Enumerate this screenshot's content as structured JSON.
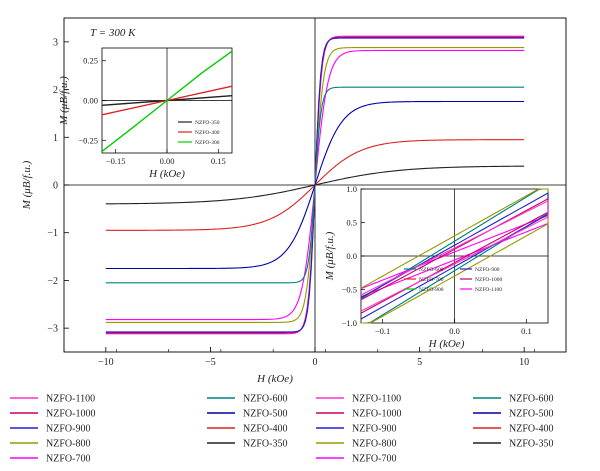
{
  "colors": {
    "NZFO-1100": "#ff33cc",
    "NZFO-1000": "#cc0066",
    "NZFO-900": "#2222cc",
    "NZFO-800": "#999900",
    "NZFO-700": "#ff00ff",
    "NZFO-600": "#008080",
    "NZFO-500": "#0000aa",
    "NZFO-400": "#dd2222",
    "NZFO-350": "#222222",
    "NZFO-300": "#00cc00"
  },
  "chart_data": [
    {
      "id": "main",
      "type": "line",
      "annotation": "T = 300 K",
      "xlabel": "H (kOe)",
      "ylabel": "M (μB/f.u.)",
      "xlim": [
        -12,
        12
      ],
      "ylim": [
        -3.5,
        3.5
      ],
      "xticks": [
        -10,
        -5,
        0,
        5,
        10
      ],
      "xtick_labels": [
        "−10",
        "−5",
        "0",
        "5",
        "10"
      ],
      "yticks": [
        -3,
        -2,
        -1,
        0,
        1,
        2,
        3
      ],
      "ytick_labels": [
        "−3",
        "−2",
        "−1",
        "0",
        "1",
        "2",
        "3"
      ],
      "grid": false,
      "series": [
        {
          "name": "NZFO-1100",
          "ms": 3.12,
          "hk": 0.32
        },
        {
          "name": "NZFO-1000",
          "ms": 3.1,
          "hk": 0.3
        },
        {
          "name": "NZFO-900",
          "ms": 3.08,
          "hk": 0.28
        },
        {
          "name": "NZFO-800",
          "ms": 2.88,
          "hk": 0.4
        },
        {
          "name": "NZFO-700",
          "ms": 2.82,
          "hk": 0.62
        },
        {
          "name": "NZFO-600",
          "ms": 2.05,
          "hk": 0.3
        },
        {
          "name": "NZFO-500",
          "ms": 1.75,
          "hk": 1.3
        },
        {
          "name": "NZFO-400",
          "ms": 0.95,
          "hk": 2.2
        },
        {
          "name": "NZFO-350",
          "ms": 0.4,
          "hk": 4.0
        }
      ]
    },
    {
      "id": "inset-left",
      "type": "line",
      "xlabel": "H (kOe)",
      "ylabel": "M (μB/f.u.)",
      "xlim": [
        -0.19,
        0.19
      ],
      "ylim": [
        -0.33,
        0.33
      ],
      "xticks": [
        -0.15,
        0,
        0.15
      ],
      "xtick_labels": [
        "−0.15",
        "0.00",
        "0.15"
      ],
      "yticks": [
        -0.25,
        0,
        0.25
      ],
      "ytick_labels": [
        "−0.25",
        "0.00",
        "0.25"
      ],
      "series": [
        {
          "name": "NZFO-350",
          "x": [
            -0.19,
            0.0,
            0.19
          ],
          "y": [
            -0.03,
            0.0,
            0.03
          ]
        },
        {
          "name": "NZFO-400",
          "x": [
            -0.19,
            0.0,
            0.19
          ],
          "y": [
            -0.09,
            0.0,
            0.09
          ]
        },
        {
          "name": "NZFO-300",
          "x": [
            -0.19,
            -0.1,
            0.0,
            0.1,
            0.19
          ],
          "y": [
            -0.32,
            -0.17,
            0.0,
            0.17,
            0.31
          ]
        }
      ]
    },
    {
      "id": "inset-right",
      "type": "line",
      "xlabel": "H (kOe)",
      "ylabel": "M (μB/f.u.)",
      "xlim": [
        -0.13,
        0.13
      ],
      "ylim": [
        -1.0,
        1.0
      ],
      "xticks": [
        -0.1,
        0,
        0.1
      ],
      "xtick_labels": [
        "−0.1",
        "0.0",
        "0.1"
      ],
      "yticks": [
        -1.0,
        -0.5,
        0.0,
        0.5,
        1.0
      ],
      "ytick_labels": [
        "−1.0",
        "−0.5",
        "0.0",
        "0.5",
        "1.0"
      ],
      "series": [
        {
          "name": "NZFO-600",
          "slope": 6.6,
          "mr": 0.22
        },
        {
          "name": "NZFO-700",
          "slope": 4.2,
          "mr": 0.06
        },
        {
          "name": "NZFO-800",
          "slope": 6.0,
          "mr": 0.3
        },
        {
          "name": "NZFO-900",
          "slope": 6.0,
          "mr": 0.16
        },
        {
          "name": "NZFO-1000",
          "slope": 5.8,
          "mr": 0.1
        },
        {
          "name": "NZFO-1100",
          "slope": 5.4,
          "mr": 0.12
        }
      ]
    }
  ],
  "inset_left_legend": [
    {
      "label": "NZFO-350",
      "color_key": "NZFO-350"
    },
    {
      "label": "NZFO-400",
      "color_key": "NZFO-400"
    },
    {
      "label": "NZFO-300",
      "color_key": "NZFO-300"
    }
  ],
  "inset_right_legend": [
    {
      "label": "NZFO-600",
      "color_key": "NZFO-600"
    },
    {
      "label": "NZFO-900",
      "color_key": "NZFO-900"
    },
    {
      "label": "NZFO-700",
      "color_key": "NZFO-400"
    },
    {
      "label": "NZFO-1000",
      "color_key": "NZFO-1000"
    },
    {
      "label": "NZFO-800",
      "color_key": "NZFO-300"
    },
    {
      "label": "NZFO-1100",
      "color_key": "NZFO-700"
    }
  ],
  "bottom_legend": {
    "columns": [
      [
        {
          "label": "NZFO-1100",
          "color_key": "NZFO-1100"
        },
        {
          "label": "NZFO-1000",
          "color_key": "NZFO-1000"
        },
        {
          "label": "NZFO-900",
          "color_key": "NZFO-900"
        },
        {
          "label": "NZFO-800",
          "color_key": "NZFO-800"
        },
        {
          "label": "NZFO-700",
          "color_key": "NZFO-700"
        }
      ],
      [
        {
          "label": "NZFO-600",
          "color_key": "NZFO-600"
        },
        {
          "label": "NZFO-500",
          "color_key": "NZFO-500"
        },
        {
          "label": "NZFO-400",
          "color_key": "NZFO-400"
        },
        {
          "label": "NZFO-350",
          "color_key": "NZFO-350"
        }
      ],
      [
        {
          "label": "NZFO-1100",
          "color_key": "NZFO-1100"
        },
        {
          "label": "NZFO-1000",
          "color_key": "NZFO-1000"
        },
        {
          "label": "NZFO-900",
          "color_key": "NZFO-900"
        },
        {
          "label": "NZFO-800",
          "color_key": "NZFO-800"
        },
        {
          "label": "NZFO-700",
          "color_key": "NZFO-700"
        }
      ],
      [
        {
          "label": "NZFO-600",
          "color_key": "NZFO-600"
        },
        {
          "label": "NZFO-500",
          "color_key": "NZFO-500"
        },
        {
          "label": "NZFO-400",
          "color_key": "NZFO-400"
        },
        {
          "label": "NZFO-350",
          "color_key": "NZFO-350"
        }
      ]
    ]
  }
}
